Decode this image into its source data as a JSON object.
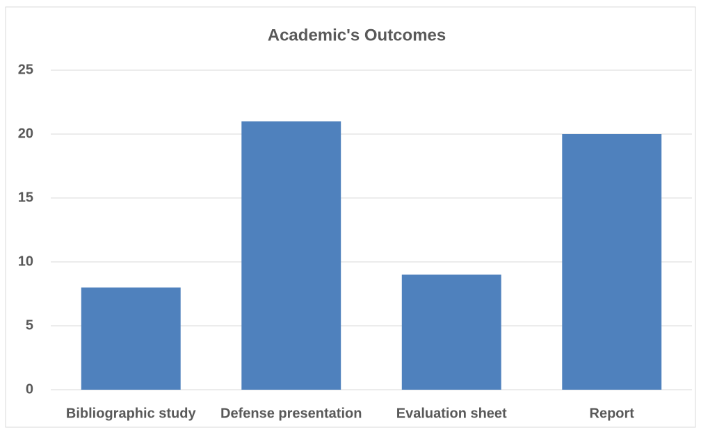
{
  "chart_data": {
    "type": "bar",
    "title": "Academic's Outcomes",
    "categories": [
      "Bibliographic study",
      "Defense presentation",
      "Evaluation sheet",
      "Report"
    ],
    "values": [
      8,
      21,
      9,
      20
    ],
    "color": "#4f81bd",
    "ylim": [
      0,
      25
    ],
    "yticks": [
      0,
      5,
      10,
      15,
      20,
      25
    ],
    "grid": true
  }
}
